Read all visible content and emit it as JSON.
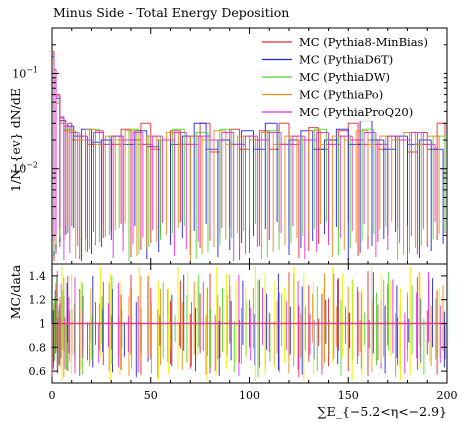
{
  "chart_data": {
    "type": "line",
    "title": "Minus Side - Total Energy Deposition",
    "xlabel": "∑E_{−5.2<η<−2.9}",
    "ylabel_main": "1/N_{ev} dN/dE",
    "ylabel_ratio": "MC/data",
    "x_range": [
      0,
      200
    ],
    "x_ticks": [
      "0",
      "50",
      "100",
      "150",
      "200"
    ],
    "main_y_scale": "log",
    "main_y_range": [
      0.001,
      0.3
    ],
    "main_y_ticks": [
      {
        "value": 0.1,
        "label": "10",
        "exp": "−1"
      },
      {
        "value": 0.01,
        "label": "10",
        "exp": "−2"
      }
    ],
    "ratio_y_range": [
      0.5,
      1.5
    ],
    "ratio_y_ticks": [
      "0.6",
      "0.8",
      "1",
      "1.2",
      "1.4"
    ],
    "legend_position": "top-right",
    "series": [
      {
        "name": "MC (Pythia8-MinBias)",
        "color": "#e8292b",
        "points": [
          [
            0,
            0.17
          ],
          [
            1,
            0.11
          ],
          [
            2,
            0.06
          ],
          [
            4,
            0.035
          ],
          [
            6,
            0.025
          ],
          [
            8,
            0.03
          ],
          [
            10,
            0.02
          ],
          [
            14,
            0.022
          ],
          [
            18,
            0.018
          ],
          [
            22,
            0.025
          ],
          [
            26,
            0.02
          ],
          [
            30,
            0.018
          ],
          [
            35,
            0.026
          ],
          [
            40,
            0.02
          ],
          [
            45,
            0.03
          ],
          [
            50,
            0.016
          ],
          [
            55,
            0.02
          ],
          [
            60,
            0.025
          ],
          [
            65,
            0.018
          ],
          [
            70,
            0.022
          ],
          [
            75,
            0.03
          ],
          [
            80,
            0.015
          ],
          [
            85,
            0.02
          ],
          [
            90,
            0.026
          ],
          [
            95,
            0.016
          ],
          [
            100,
            0.02
          ],
          [
            105,
            0.025
          ],
          [
            110,
            0.016
          ],
          [
            115,
            0.03
          ],
          [
            120,
            0.018
          ],
          [
            125,
            0.02
          ],
          [
            130,
            0.027
          ],
          [
            135,
            0.016
          ],
          [
            140,
            0.02
          ],
          [
            145,
            0.025
          ],
          [
            150,
            0.03
          ],
          [
            155,
            0.018
          ],
          [
            160,
            0.02
          ],
          [
            165,
            0.016
          ],
          [
            170,
            0.022
          ],
          [
            175,
            0.02
          ],
          [
            180,
            0.015
          ],
          [
            185,
            0.024
          ],
          [
            190,
            0.016
          ],
          [
            195,
            0.03
          ],
          [
            199,
            0.015
          ]
        ]
      },
      {
        "name": "MC (PythiaD6T)",
        "color": "#1f24e6",
        "points": [
          [
            0,
            0.15
          ],
          [
            1,
            0.1
          ],
          [
            2,
            0.055
          ],
          [
            4,
            0.032
          ],
          [
            7,
            0.028
          ],
          [
            11,
            0.022
          ],
          [
            15,
            0.026
          ],
          [
            20,
            0.019
          ],
          [
            25,
            0.02
          ],
          [
            30,
            0.022
          ],
          [
            36,
            0.018
          ],
          [
            42,
            0.025
          ],
          [
            48,
            0.017
          ],
          [
            54,
            0.02
          ],
          [
            60,
            0.018
          ],
          [
            66,
            0.022
          ],
          [
            72,
            0.03
          ],
          [
            78,
            0.016
          ],
          [
            84,
            0.02
          ],
          [
            90,
            0.018
          ],
          [
            96,
            0.025
          ],
          [
            102,
            0.016
          ],
          [
            108,
            0.03
          ],
          [
            114,
            0.018
          ],
          [
            120,
            0.02
          ],
          [
            126,
            0.025
          ],
          [
            132,
            0.016
          ],
          [
            138,
            0.02
          ],
          [
            144,
            0.026
          ],
          [
            150,
            0.018
          ],
          [
            156,
            0.032
          ],
          [
            162,
            0.02
          ],
          [
            168,
            0.016
          ],
          [
            174,
            0.022
          ],
          [
            180,
            0.018
          ],
          [
            186,
            0.02
          ],
          [
            192,
            0.016
          ],
          [
            198,
            0.022
          ]
        ]
      },
      {
        "name": "MC (PythiaDW)",
        "color": "#4ed82a",
        "points": [
          [
            0,
            0.14
          ],
          [
            1,
            0.09
          ],
          [
            2,
            0.05
          ],
          [
            4,
            0.03
          ],
          [
            6,
            0.026
          ],
          [
            10,
            0.024
          ],
          [
            14,
            0.02
          ],
          [
            19,
            0.026
          ],
          [
            24,
            0.018
          ],
          [
            29,
            0.022
          ],
          [
            34,
            0.02
          ],
          [
            39,
            0.026
          ],
          [
            44,
            0.018
          ],
          [
            49,
            0.022
          ],
          [
            55,
            0.02
          ],
          [
            61,
            0.026
          ],
          [
            67,
            0.018
          ],
          [
            73,
            0.024
          ],
          [
            79,
            0.02
          ],
          [
            85,
            0.026
          ],
          [
            91,
            0.018
          ],
          [
            97,
            0.022
          ],
          [
            103,
            0.02
          ],
          [
            109,
            0.025
          ],
          [
            115,
            0.018
          ],
          [
            121,
            0.022
          ],
          [
            127,
            0.02
          ],
          [
            133,
            0.026
          ],
          [
            139,
            0.018
          ],
          [
            145,
            0.022
          ],
          [
            151,
            0.02
          ],
          [
            157,
            0.026
          ],
          [
            163,
            0.018
          ],
          [
            169,
            0.022
          ],
          [
            175,
            0.02
          ],
          [
            181,
            0.024
          ],
          [
            187,
            0.018
          ],
          [
            193,
            0.022
          ],
          [
            199,
            0.02
          ]
        ]
      },
      {
        "name": "MC (PythiaPo)",
        "color": "#e88a1a",
        "points": [
          [
            0,
            0.13
          ],
          [
            1,
            0.085
          ],
          [
            2,
            0.048
          ],
          [
            4,
            0.03
          ],
          [
            7,
            0.025
          ],
          [
            12,
            0.02
          ],
          [
            17,
            0.026
          ],
          [
            22,
            0.018
          ],
          [
            27,
            0.022
          ],
          [
            32,
            0.02
          ],
          [
            37,
            0.025
          ],
          [
            43,
            0.018
          ],
          [
            48,
            0.022
          ],
          [
            53,
            0.02
          ],
          [
            58,
            0.024
          ],
          [
            64,
            0.018
          ],
          [
            70,
            0.022
          ],
          [
            76,
            0.02
          ],
          [
            82,
            0.025
          ],
          [
            88,
            0.018
          ],
          [
            94,
            0.022
          ],
          [
            100,
            0.02
          ],
          [
            106,
            0.024
          ],
          [
            112,
            0.018
          ],
          [
            118,
            0.022
          ],
          [
            124,
            0.02
          ],
          [
            130,
            0.025
          ],
          [
            136,
            0.018
          ],
          [
            142,
            0.022
          ],
          [
            148,
            0.02
          ],
          [
            154,
            0.025
          ],
          [
            160,
            0.018
          ],
          [
            166,
            0.022
          ],
          [
            172,
            0.02
          ],
          [
            178,
            0.024
          ],
          [
            184,
            0.018
          ],
          [
            190,
            0.022
          ],
          [
            196,
            0.02
          ]
        ]
      },
      {
        "name": "MC (PythiaProQ20)",
        "color": "#e62ae6",
        "points": [
          [
            0,
            0.16
          ],
          [
            1,
            0.1
          ],
          [
            2,
            0.058
          ],
          [
            4,
            0.034
          ],
          [
            6,
            0.028
          ],
          [
            9,
            0.024
          ],
          [
            13,
            0.022
          ],
          [
            17,
            0.02
          ],
          [
            21,
            0.024
          ],
          [
            26,
            0.018
          ],
          [
            31,
            0.022
          ],
          [
            36,
            0.02
          ],
          [
            41,
            0.024
          ],
          [
            46,
            0.018
          ],
          [
            51,
            0.022
          ],
          [
            56,
            0.02
          ],
          [
            62,
            0.024
          ],
          [
            68,
            0.018
          ],
          [
            74,
            0.022
          ],
          [
            80,
            0.02
          ],
          [
            86,
            0.024
          ],
          [
            92,
            0.018
          ],
          [
            98,
            0.022
          ],
          [
            104,
            0.02
          ],
          [
            110,
            0.024
          ],
          [
            116,
            0.018
          ],
          [
            122,
            0.022
          ],
          [
            128,
            0.02
          ],
          [
            134,
            0.024
          ],
          [
            140,
            0.018
          ],
          [
            146,
            0.022
          ],
          [
            152,
            0.02
          ],
          [
            158,
            0.024
          ],
          [
            164,
            0.018
          ],
          [
            170,
            0.022
          ],
          [
            176,
            0.02
          ],
          [
            182,
            0.024
          ],
          [
            188,
            0.018
          ],
          [
            194,
            0.022
          ]
        ]
      }
    ]
  }
}
